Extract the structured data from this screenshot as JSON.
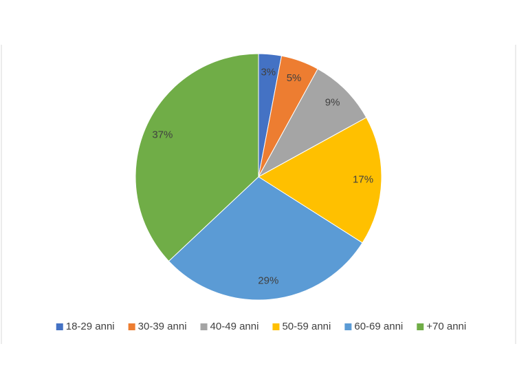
{
  "chart_data": {
    "type": "pie",
    "categories": [
      "18-29 anni",
      "30-39 anni",
      "40-49 anni",
      "50-59 anni",
      "60-69 anni",
      "+70 anni"
    ],
    "values": [
      3,
      5,
      9,
      17,
      29,
      37
    ],
    "value_labels": [
      "3%",
      "5%",
      "9%",
      "17%",
      "29%",
      "37%"
    ],
    "colors": [
      "#4472c4",
      "#ed7d31",
      "#a5a5a5",
      "#ffc000",
      "#5b9bd5",
      "#70ad47"
    ],
    "legend": "bottom"
  }
}
